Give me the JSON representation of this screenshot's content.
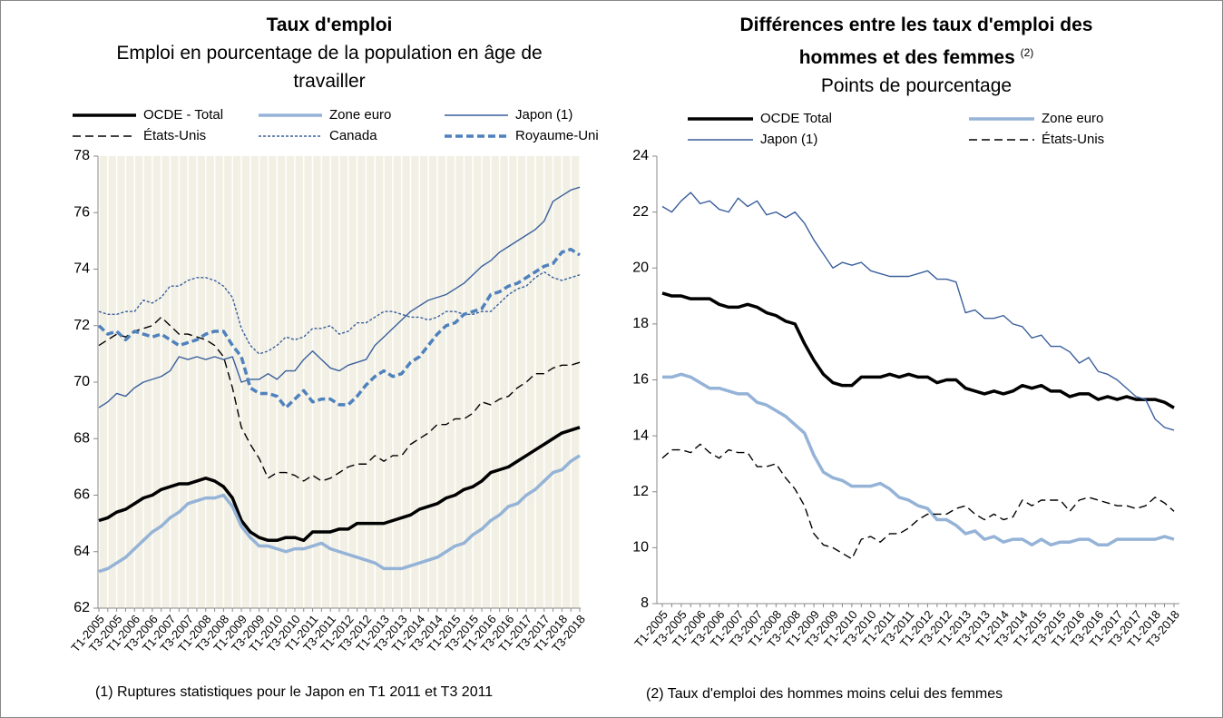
{
  "chart_data": [
    {
      "type": "line",
      "title": "Taux d'emploi",
      "subtitle": "Emploi en pourcentage de la population en âge de travailler",
      "footnote": "(1) Ruptures statistiques pour le Japon en T1 2011 et T3 2011",
      "grid": "x",
      "background": "#f2f0e4",
      "legend_columns": 3,
      "categories": [
        "T1-2005",
        null,
        "T3-2005",
        null,
        "T1-2006",
        null,
        "T3-2006",
        null,
        "T1-2007",
        null,
        "T3-2007",
        null,
        "T1-2008",
        null,
        "T3-2008",
        null,
        "T1-2009",
        null,
        "T3-2009",
        null,
        "T1-2010",
        null,
        "T3-2010",
        null,
        "T1-2011",
        null,
        "T3-2011",
        null,
        "T1-2012",
        null,
        "T3-2012",
        null,
        "T1-2013",
        null,
        "T3-2013",
        null,
        "T1-2014",
        null,
        "T3-2014",
        null,
        "T1-2015",
        null,
        "T3-2015",
        null,
        "T1-2016",
        null,
        "T3-2016",
        null,
        "T1-2017",
        null,
        "T3-2017",
        null,
        "T1-2018",
        null,
        "T3-2018"
      ],
      "ylim": [
        62,
        78
      ],
      "yticks": [
        62,
        64,
        66,
        68,
        70,
        72,
        74,
        76,
        78
      ],
      "series": [
        {
          "name": "OCDE - Total",
          "color": "#000000",
          "line_style": "thick",
          "values": [
            65.1,
            65.2,
            65.4,
            65.5,
            65.7,
            65.9,
            66.0,
            66.2,
            66.3,
            66.4,
            66.4,
            66.5,
            66.6,
            66.5,
            66.3,
            65.9,
            65.1,
            64.7,
            64.5,
            64.4,
            64.4,
            64.5,
            64.5,
            64.4,
            64.7,
            64.7,
            64.7,
            64.8,
            64.8,
            65.0,
            65.0,
            65.0,
            65.0,
            65.1,
            65.2,
            65.3,
            65.5,
            65.6,
            65.7,
            65.9,
            66.0,
            66.2,
            66.3,
            66.5,
            66.8,
            66.9,
            67.0,
            67.2,
            67.4,
            67.6,
            67.8,
            68.0,
            68.2,
            68.3,
            68.4
          ]
        },
        {
          "name": "Zone euro",
          "color": "#95b3d7",
          "line_style": "thick",
          "values": [
            63.3,
            63.4,
            63.6,
            63.8,
            64.1,
            64.4,
            64.7,
            64.9,
            65.2,
            65.4,
            65.7,
            65.8,
            65.9,
            65.9,
            66.0,
            65.6,
            64.9,
            64.5,
            64.2,
            64.2,
            64.1,
            64.0,
            64.1,
            64.1,
            64.2,
            64.3,
            64.1,
            64.0,
            63.9,
            63.8,
            63.7,
            63.6,
            63.4,
            63.4,
            63.4,
            63.5,
            63.6,
            63.7,
            63.8,
            64.0,
            64.2,
            64.3,
            64.6,
            64.8,
            65.1,
            65.3,
            65.6,
            65.7,
            66.0,
            66.2,
            66.5,
            66.8,
            66.9,
            67.2,
            67.4
          ]
        },
        {
          "name": "Japon (1)",
          "color": "#3a5f9c",
          "line_style": "solid",
          "values": [
            69.1,
            69.3,
            69.6,
            69.5,
            69.8,
            70.0,
            70.1,
            70.2,
            70.4,
            70.9,
            70.8,
            70.9,
            70.8,
            70.9,
            70.8,
            70.9,
            70.0,
            70.1,
            70.1,
            70.3,
            70.1,
            70.4,
            70.4,
            70.8,
            71.1,
            70.8,
            70.5,
            70.4,
            70.6,
            70.7,
            70.8,
            71.3,
            71.6,
            71.9,
            72.2,
            72.5,
            72.7,
            72.9,
            73.0,
            73.1,
            73.3,
            73.5,
            73.8,
            74.1,
            74.3,
            74.6,
            74.8,
            75.0,
            75.2,
            75.4,
            75.7,
            76.4,
            76.6,
            76.8,
            76.9
          ]
        },
        {
          "name": "États-Unis",
          "color": "#000000",
          "line_style": "dashed",
          "values": [
            71.3,
            71.5,
            71.7,
            71.6,
            71.8,
            71.9,
            72.0,
            72.3,
            72.0,
            71.7,
            71.7,
            71.6,
            71.5,
            71.3,
            70.9,
            69.8,
            68.4,
            67.8,
            67.3,
            66.6,
            66.8,
            66.8,
            66.7,
            66.5,
            66.7,
            66.5,
            66.6,
            66.8,
            67.0,
            67.1,
            67.1,
            67.4,
            67.2,
            67.4,
            67.4,
            67.8,
            68.0,
            68.2,
            68.5,
            68.5,
            68.7,
            68.7,
            68.9,
            69.3,
            69.2,
            69.4,
            69.5,
            69.8,
            70.0,
            70.3,
            70.3,
            70.5,
            70.6,
            70.6,
            70.7
          ]
        },
        {
          "name": "Canada",
          "color": "#3a5f9c",
          "line_style": "dotted",
          "values": [
            72.5,
            72.4,
            72.4,
            72.5,
            72.5,
            72.9,
            72.8,
            73.0,
            73.4,
            73.4,
            73.6,
            73.7,
            73.7,
            73.6,
            73.4,
            73.0,
            71.9,
            71.3,
            71.0,
            71.1,
            71.3,
            71.6,
            71.5,
            71.6,
            71.9,
            71.9,
            72.0,
            71.7,
            71.8,
            72.1,
            72.1,
            72.3,
            72.5,
            72.5,
            72.4,
            72.3,
            72.3,
            72.2,
            72.3,
            72.5,
            72.5,
            72.4,
            72.4,
            72.5,
            72.5,
            72.8,
            73.1,
            73.3,
            73.4,
            73.7,
            73.9,
            73.7,
            73.6,
            73.7,
            73.8
          ]
        },
        {
          "name": "Royaume-Uni",
          "color": "#4f81bd",
          "line_style": "thick-dashed",
          "values": [
            72.0,
            71.7,
            71.8,
            71.5,
            71.8,
            71.7,
            71.6,
            71.7,
            71.5,
            71.3,
            71.4,
            71.5,
            71.7,
            71.8,
            71.8,
            71.3,
            70.9,
            69.8,
            69.6,
            69.6,
            69.5,
            69.1,
            69.4,
            69.7,
            69.3,
            69.4,
            69.4,
            69.2,
            69.2,
            69.5,
            69.9,
            70.2,
            70.4,
            70.2,
            70.3,
            70.7,
            70.9,
            71.3,
            71.7,
            72.0,
            72.1,
            72.4,
            72.5,
            72.6,
            73.1,
            73.2,
            73.4,
            73.5,
            73.7,
            73.9,
            74.1,
            74.2,
            74.6,
            74.7,
            74.5
          ]
        }
      ]
    },
    {
      "type": "line",
      "title": "Différences entre les taux d'emploi des hommes et des femmes",
      "title_note": "(2)",
      "subtitle": "Points de pourcentage",
      "footnote": "(2) Taux d'emploi des hommes moins celui des femmes",
      "grid": "none",
      "background": "#ffffff",
      "legend_columns": 2,
      "categories": [
        "T1-2005",
        null,
        "T3-2005",
        null,
        "T1-2006",
        null,
        "T3-2006",
        null,
        "T1-2007",
        null,
        "T3-2007",
        null,
        "T1-2008",
        null,
        "T3-2008",
        null,
        "T1-2009",
        null,
        "T3-2009",
        null,
        "T1-2010",
        null,
        "T3-2010",
        null,
        "T1-2011",
        null,
        "T3-2011",
        null,
        "T1-2012",
        null,
        "T3-2012",
        null,
        "T1-2013",
        null,
        "T3-2013",
        null,
        "T1-2014",
        null,
        "T3-2014",
        null,
        "T1-2015",
        null,
        "T3-2015",
        null,
        "T1-2016",
        null,
        "T3-2016",
        null,
        "T1-2017",
        null,
        "T3-2017",
        null,
        "T1-2018",
        null,
        "T3-2018"
      ],
      "ylim": [
        8,
        24
      ],
      "yticks": [
        8,
        10,
        12,
        14,
        16,
        18,
        20,
        22,
        24
      ],
      "series": [
        {
          "name": "OCDE Total",
          "color": "#000000",
          "line_style": "thick",
          "values": [
            19.1,
            19.0,
            19.0,
            18.9,
            18.9,
            18.9,
            18.7,
            18.6,
            18.6,
            18.7,
            18.6,
            18.4,
            18.3,
            18.1,
            18.0,
            17.3,
            16.7,
            16.2,
            15.9,
            15.8,
            15.8,
            16.1,
            16.1,
            16.1,
            16.2,
            16.1,
            16.2,
            16.1,
            16.1,
            15.9,
            16.0,
            16.0,
            15.7,
            15.6,
            15.5,
            15.6,
            15.5,
            15.6,
            15.8,
            15.7,
            15.8,
            15.6,
            15.6,
            15.4,
            15.5,
            15.5,
            15.3,
            15.4,
            15.3,
            15.4,
            15.3,
            15.3,
            15.3,
            15.2,
            15.0
          ]
        },
        {
          "name": "Zone euro",
          "color": "#95b3d7",
          "line_style": "thick",
          "values": [
            16.1,
            16.1,
            16.2,
            16.1,
            15.9,
            15.7,
            15.7,
            15.6,
            15.5,
            15.5,
            15.2,
            15.1,
            14.9,
            14.7,
            14.4,
            14.1,
            13.3,
            12.7,
            12.5,
            12.4,
            12.2,
            12.2,
            12.2,
            12.3,
            12.1,
            11.8,
            11.7,
            11.5,
            11.4,
            11.0,
            11.0,
            10.8,
            10.5,
            10.6,
            10.3,
            10.4,
            10.2,
            10.3,
            10.3,
            10.1,
            10.3,
            10.1,
            10.2,
            10.2,
            10.3,
            10.3,
            10.1,
            10.1,
            10.3,
            10.3,
            10.3,
            10.3,
            10.3,
            10.4,
            10.3
          ]
        },
        {
          "name": "Japon (1)",
          "color": "#3a5f9c",
          "line_style": "solid",
          "values": [
            22.2,
            22.0,
            22.4,
            22.7,
            22.3,
            22.4,
            22.1,
            22.0,
            22.5,
            22.2,
            22.4,
            21.9,
            22.0,
            21.8,
            22.0,
            21.6,
            21.0,
            20.5,
            20.0,
            20.2,
            20.1,
            20.2,
            19.9,
            19.8,
            19.7,
            19.7,
            19.7,
            19.8,
            19.9,
            19.6,
            19.6,
            19.5,
            18.4,
            18.5,
            18.2,
            18.2,
            18.3,
            18.0,
            17.9,
            17.5,
            17.6,
            17.2,
            17.2,
            17.0,
            16.6,
            16.8,
            16.3,
            16.2,
            16.0,
            15.7,
            15.4,
            15.3,
            14.6,
            14.3,
            14.2
          ]
        },
        {
          "name": "États-Unis",
          "color": "#000000",
          "line_style": "dashed",
          "values": [
            13.2,
            13.5,
            13.5,
            13.4,
            13.7,
            13.4,
            13.2,
            13.5,
            13.4,
            13.4,
            12.9,
            12.9,
            13.0,
            12.5,
            12.1,
            11.5,
            10.5,
            10.1,
            10.0,
            9.8,
            9.6,
            10.3,
            10.4,
            10.2,
            10.5,
            10.5,
            10.7,
            11.0,
            11.2,
            11.2,
            11.2,
            11.4,
            11.5,
            11.2,
            11.0,
            11.2,
            11.0,
            11.1,
            11.7,
            11.5,
            11.7,
            11.7,
            11.7,
            11.3,
            11.7,
            11.8,
            11.7,
            11.6,
            11.5,
            11.5,
            11.4,
            11.5,
            11.8,
            11.6,
            11.3
          ]
        }
      ]
    }
  ]
}
